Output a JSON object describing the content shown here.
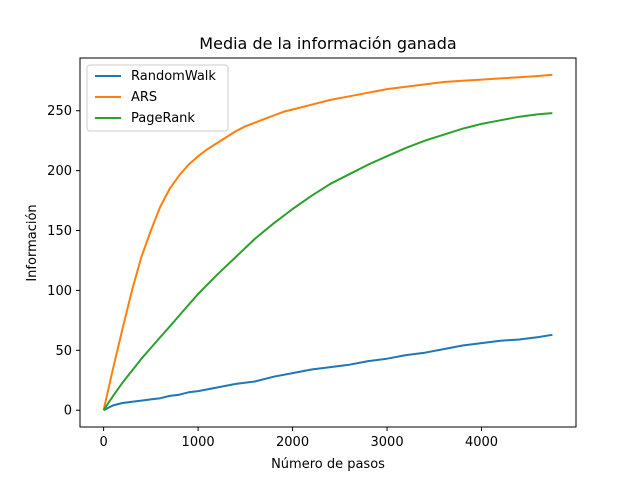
{
  "chart_data": {
    "type": "line",
    "title": "Media de la información ganada",
    "xlabel": "Número de pasos",
    "ylabel": "Información",
    "xlim": [
      -250,
      5000
    ],
    "ylim": [
      -14,
      294
    ],
    "xticks": [
      0,
      1000,
      2000,
      3000,
      4000
    ],
    "yticks": [
      0,
      50,
      100,
      150,
      200,
      250
    ],
    "grid": false,
    "legend": "upper-left",
    "series": [
      {
        "name": "RandomWalk",
        "color": "#1f77b4",
        "x": [
          0,
          100,
          200,
          300,
          400,
          500,
          600,
          700,
          800,
          900,
          1000,
          1200,
          1400,
          1600,
          1800,
          2000,
          2200,
          2400,
          2600,
          2800,
          3000,
          3200,
          3400,
          3600,
          3800,
          4000,
          4200,
          4400,
          4600,
          4750
        ],
        "y": [
          0,
          4,
          6,
          7,
          8,
          9,
          10,
          12,
          13,
          15,
          16,
          19,
          22,
          24,
          28,
          31,
          34,
          36,
          38,
          41,
          43,
          46,
          48,
          51,
          54,
          56,
          58,
          59,
          61,
          63
        ]
      },
      {
        "name": "ARS",
        "color": "#ff7f0e",
        "x": [
          0,
          100,
          200,
          300,
          400,
          500,
          600,
          700,
          800,
          900,
          1000,
          1100,
          1200,
          1300,
          1400,
          1500,
          1600,
          1700,
          1800,
          1900,
          2000,
          2200,
          2400,
          2600,
          2800,
          3000,
          3200,
          3400,
          3600,
          3800,
          4000,
          4200,
          4400,
          4600,
          4750
        ],
        "y": [
          0,
          35,
          68,
          100,
          128,
          150,
          170,
          185,
          196,
          205,
          212,
          218,
          223,
          228,
          233,
          237,
          240,
          243,
          246,
          249,
          251,
          255,
          259,
          262,
          265,
          268,
          270,
          272,
          274,
          275,
          276,
          277,
          278,
          279,
          280
        ]
      },
      {
        "name": "PageRank",
        "color": "#2ca02c",
        "x": [
          0,
          100,
          200,
          300,
          400,
          500,
          600,
          700,
          800,
          900,
          1000,
          1200,
          1400,
          1600,
          1800,
          2000,
          2200,
          2400,
          2600,
          2800,
          3000,
          3200,
          3400,
          3600,
          3800,
          4000,
          4200,
          4400,
          4600,
          4750
        ],
        "y": [
          0,
          12,
          23,
          33,
          43,
          52,
          61,
          70,
          79,
          88,
          97,
          113,
          128,
          143,
          156,
          168,
          179,
          189,
          197,
          205,
          212,
          219,
          225,
          230,
          235,
          239,
          242,
          245,
          247,
          248
        ]
      }
    ]
  }
}
